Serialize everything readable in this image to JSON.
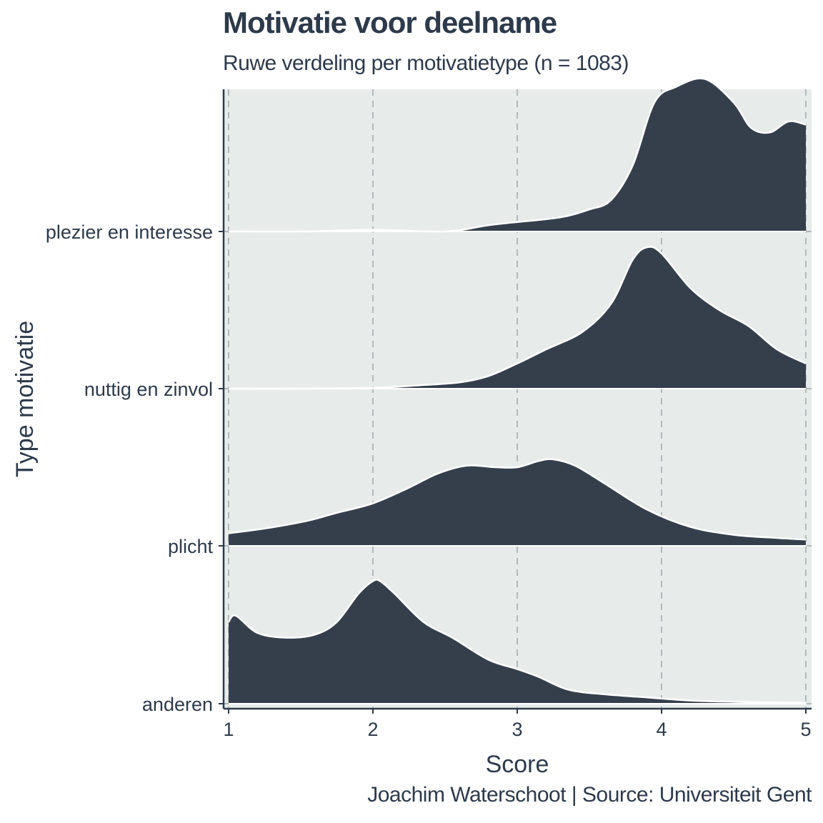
{
  "chart_data": {
    "type": "ridgeline",
    "title": "Motivatie voor deelname",
    "subtitle": "Ruwe verdeling per motivatietype (n = 1083)",
    "caption": "Joachim Waterschoot | Source: Universiteit Gent",
    "xlabel": "Score",
    "ylabel": "Type motivatie",
    "xlim": [
      1,
      5
    ],
    "x_ticks": [
      1,
      2,
      3,
      4,
      5
    ],
    "categories": [
      "anderen",
      "plicht",
      "nuttig en zinvol",
      "plezier en interesse"
    ],
    "grid": "vertical dashed",
    "colors": {
      "fill": "#353f4c",
      "outline": "#ffffff",
      "panel": "#e7eceb",
      "text": "#2d3a4b",
      "grid": "#b3b8bb"
    },
    "series": [
      {
        "name": "anderen",
        "x": [
          1.0,
          1.05,
          1.2,
          1.4,
          1.6,
          1.75,
          1.9,
          2.0,
          2.05,
          2.15,
          2.35,
          2.55,
          2.8,
          3.0,
          3.15,
          3.35,
          3.6,
          3.9,
          4.2,
          4.6,
          5.0
        ],
        "density": [
          0.52,
          0.56,
          0.45,
          0.42,
          0.44,
          0.52,
          0.7,
          0.78,
          0.78,
          0.7,
          0.52,
          0.42,
          0.28,
          0.22,
          0.17,
          0.09,
          0.06,
          0.04,
          0.02,
          0.01,
          0.005
        ]
      },
      {
        "name": "plicht",
        "x": [
          1.0,
          1.25,
          1.55,
          1.75,
          2.0,
          2.25,
          2.45,
          2.65,
          2.85,
          3.0,
          3.15,
          3.25,
          3.4,
          3.6,
          3.9,
          4.2,
          4.5,
          4.8,
          5.0
        ],
        "density": [
          0.08,
          0.11,
          0.16,
          0.21,
          0.27,
          0.37,
          0.46,
          0.51,
          0.5,
          0.5,
          0.54,
          0.55,
          0.51,
          0.4,
          0.23,
          0.12,
          0.07,
          0.05,
          0.04
        ]
      },
      {
        "name": "nuttig en zinvol",
        "x": [
          1.0,
          1.5,
          2.0,
          2.3,
          2.6,
          2.8,
          3.0,
          3.2,
          3.45,
          3.65,
          3.8,
          3.9,
          4.0,
          4.2,
          4.4,
          4.6,
          4.8,
          5.0
        ],
        "density": [
          0.0,
          0.0,
          0.005,
          0.02,
          0.04,
          0.08,
          0.16,
          0.25,
          0.36,
          0.54,
          0.82,
          0.9,
          0.86,
          0.64,
          0.5,
          0.4,
          0.25,
          0.16
        ]
      },
      {
        "name": "plezier en interesse",
        "x": [
          1.0,
          1.5,
          2.0,
          2.5,
          2.8,
          3.0,
          3.3,
          3.5,
          3.65,
          3.8,
          3.95,
          4.1,
          4.3,
          4.5,
          4.62,
          4.75,
          4.88,
          5.0
        ],
        "density": [
          0.0,
          0.0,
          0.01,
          0.0,
          0.04,
          0.06,
          0.09,
          0.14,
          0.2,
          0.42,
          0.82,
          0.92,
          0.97,
          0.82,
          0.66,
          0.63,
          0.7,
          0.68
        ]
      }
    ]
  }
}
